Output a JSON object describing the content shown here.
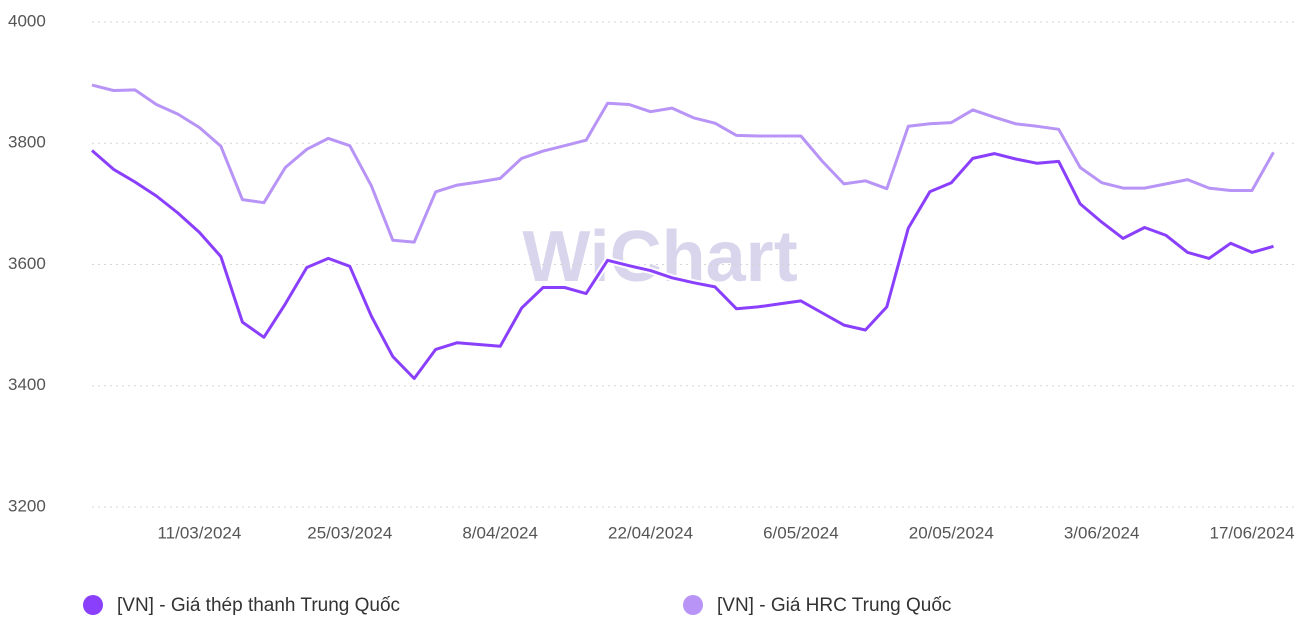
{
  "chart_data": {
    "type": "line",
    "watermark": "WiChart",
    "x": [
      "1/03/2024",
      "3/03/2024",
      "5/03/2024",
      "7/03/2024",
      "9/03/2024",
      "11/03/2024",
      "13/03/2024",
      "15/03/2024",
      "17/03/2024",
      "19/03/2024",
      "21/03/2024",
      "23/03/2024",
      "25/03/2024",
      "27/03/2024",
      "29/03/2024",
      "31/03/2024",
      "2/04/2024",
      "4/04/2024",
      "6/04/2024",
      "8/04/2024",
      "10/04/2024",
      "12/04/2024",
      "14/04/2024",
      "16/04/2024",
      "18/04/2024",
      "20/04/2024",
      "22/04/2024",
      "24/04/2024",
      "26/04/2024",
      "28/04/2024",
      "30/04/2024",
      "2/05/2024",
      "4/05/2024",
      "6/05/2024",
      "8/05/2024",
      "10/05/2024",
      "12/05/2024",
      "14/05/2024",
      "16/05/2024",
      "18/05/2024",
      "20/05/2024",
      "22/05/2024",
      "24/05/2024",
      "26/05/2024",
      "28/05/2024",
      "30/05/2024",
      "1/06/2024",
      "3/06/2024",
      "5/06/2024",
      "7/06/2024",
      "9/06/2024",
      "11/06/2024",
      "13/06/2024",
      "15/06/2024",
      "17/06/2024",
      "19/06/2024"
    ],
    "series": [
      {
        "name": "[VN] - Giá thép thanh Trung Quốc",
        "color": "#8a3ffc",
        "values": [
          3788,
          3757,
          3736,
          3713,
          3685,
          3653,
          3613,
          3505,
          3480,
          3535,
          3595,
          3610,
          3597,
          3515,
          3448,
          3412,
          3460,
          3471,
          3468,
          3465,
          3528,
          3562,
          3562,
          3552,
          3607,
          3598,
          3590,
          3578,
          3570,
          3563,
          3527,
          3530,
          3535,
          3540,
          3520,
          3500,
          3492,
          3530,
          3660,
          3720,
          3735,
          3775,
          3783,
          3774,
          3767,
          3770,
          3700,
          3670,
          3643,
          3661,
          3648,
          3620,
          3610,
          3635,
          3620,
          3630
        ]
      },
      {
        "name": "[VN] - Giá HRC Trung Quốc",
        "color": "#b794f6",
        "values": [
          3896,
          3887,
          3888,
          3864,
          3848,
          3826,
          3795,
          3707,
          3702,
          3760,
          3790,
          3808,
          3796,
          3730,
          3640,
          3637,
          3720,
          3731,
          3736,
          3742,
          3775,
          3787,
          3796,
          3805,
          3866,
          3864,
          3852,
          3858,
          3842,
          3833,
          3813,
          3812,
          3812,
          3812,
          3770,
          3733,
          3738,
          3725,
          3828,
          3832,
          3834,
          3855,
          3843,
          3832,
          3828,
          3823,
          3760,
          3735,
          3726,
          3726,
          3733,
          3740,
          3726,
          3722,
          3722,
          3785
        ]
      }
    ],
    "xlim": [
      "1/03/2024",
      "21/06/2024"
    ],
    "xticks": [
      "11/03/2024",
      "25/03/2024",
      "8/04/2024",
      "22/04/2024",
      "6/05/2024",
      "20/05/2024",
      "3/06/2024",
      "17/06/2024"
    ],
    "ylim": [
      3200,
      4000
    ],
    "yticks": [
      3200,
      3400,
      3600,
      3800,
      4000
    ],
    "grid": true
  }
}
